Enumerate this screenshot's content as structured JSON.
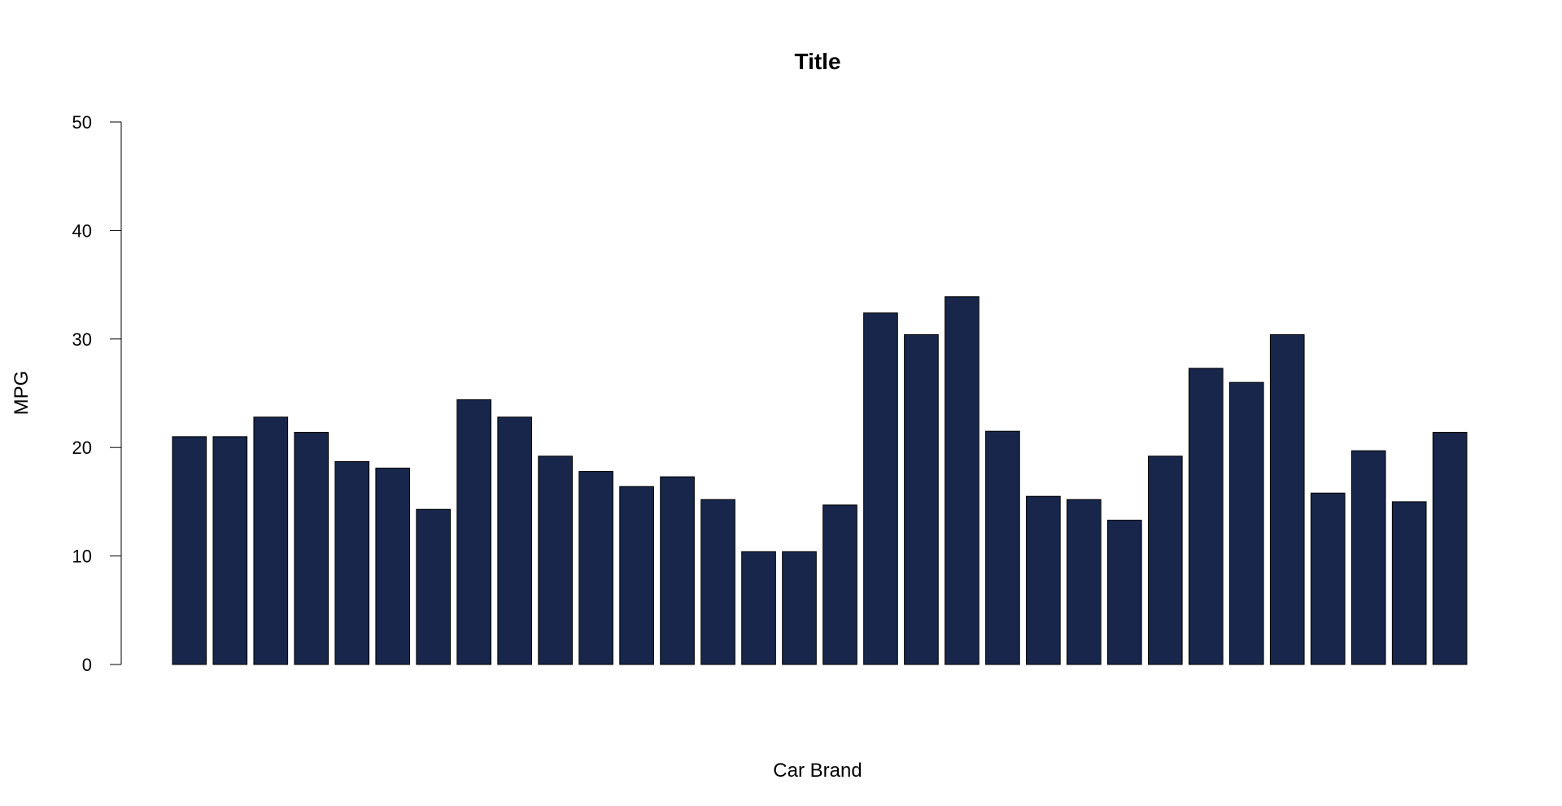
{
  "chart_data": {
    "type": "bar",
    "title": "Title",
    "xlabel": "Car Brand",
    "ylabel": "MPG",
    "ylim": [
      0,
      50
    ],
    "yticks": [
      0,
      10,
      20,
      30,
      40,
      50
    ],
    "ytick_labels": [
      "0",
      "10",
      "20",
      "30",
      "40",
      "50"
    ],
    "grid": false,
    "legend": "none",
    "bar_color": "#17264A",
    "bar_border_color": "#000000",
    "values": [
      21.0,
      21.0,
      22.8,
      21.4,
      18.7,
      18.1,
      14.3,
      24.4,
      22.8,
      19.2,
      17.8,
      16.4,
      17.3,
      15.2,
      10.4,
      10.4,
      14.7,
      32.4,
      30.4,
      33.9,
      21.5,
      15.5,
      15.2,
      13.3,
      19.2,
      27.3,
      26.0,
      30.4,
      15.8,
      19.7,
      15.0,
      21.4
    ]
  }
}
